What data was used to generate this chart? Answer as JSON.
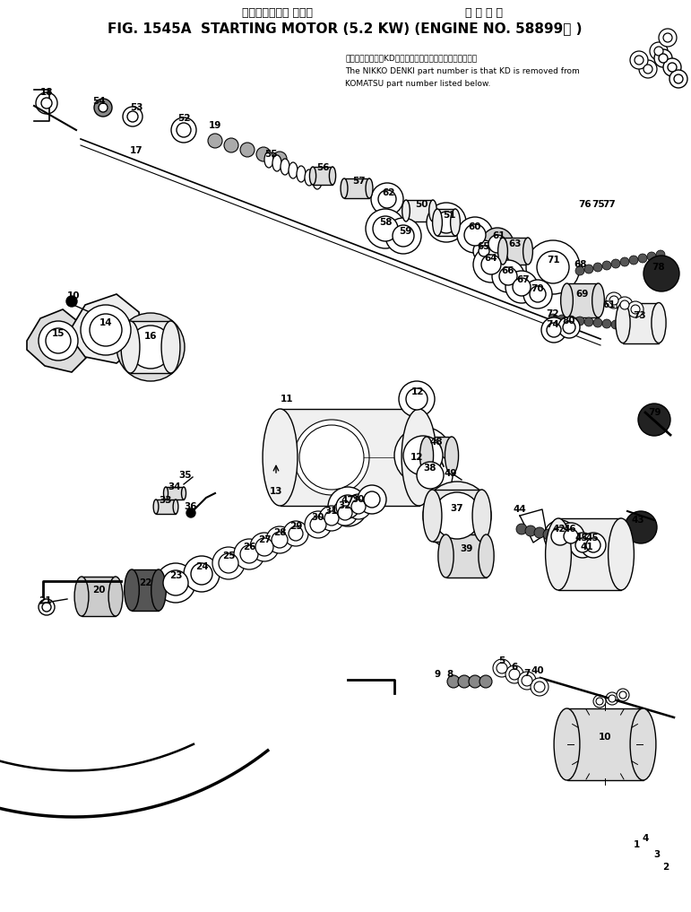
{
  "title_japanese": "スターティング モータ          適 用 号 機",
  "title_english": "FIG. 1545A  STARTING MOTOR (5.2 KW) (ENGINE NO. 58899－ )",
  "anno1": "品番のメーカ記号KDを除いたものが日興電機の品番です。",
  "anno2": "The NIKKO DENKI part number is that KD is removed from",
  "anno3": "KOMATSU part number listed below.",
  "bg_color": "#ffffff",
  "fig_width": 7.71,
  "fig_height": 10.17,
  "dpi": 100
}
